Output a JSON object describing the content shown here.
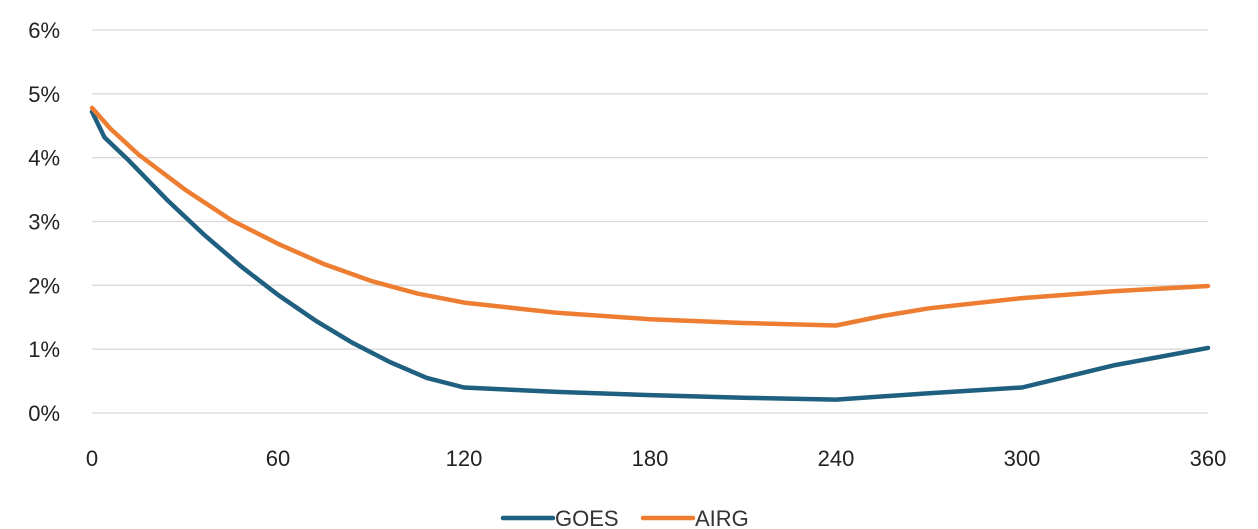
{
  "chart_data": {
    "type": "line",
    "title": "",
    "xlabel": "",
    "ylabel": "",
    "xlim": [
      0,
      360
    ],
    "ylim": [
      0,
      6
    ],
    "x_ticks": [
      "0",
      "60",
      "120",
      "180",
      "240",
      "300",
      "360"
    ],
    "y_ticks": [
      "0%",
      "1%",
      "2%",
      "3%",
      "4%",
      "5%",
      "6%"
    ],
    "grid": "horizontal",
    "legend_position": "bottom",
    "series": [
      {
        "name": "GOES",
        "color": "#1f5f80",
        "x": [
          0,
          4,
          12,
          24,
          36,
          48,
          60,
          72,
          84,
          96,
          108,
          120,
          150,
          180,
          210,
          240,
          270,
          300,
          330,
          360
        ],
        "y": [
          4.72,
          4.32,
          3.95,
          3.35,
          2.8,
          2.3,
          1.85,
          1.45,
          1.1,
          0.8,
          0.55,
          0.4,
          0.33,
          0.28,
          0.24,
          0.21,
          0.31,
          0.4,
          0.75,
          1.02
        ]
      },
      {
        "name": "AIRG",
        "color": "#ed7d31",
        "x": [
          0,
          6,
          15,
          30,
          45,
          60,
          75,
          90,
          105,
          120,
          150,
          180,
          210,
          240,
          255,
          270,
          300,
          330,
          360
        ],
        "y": [
          4.78,
          4.45,
          4.05,
          3.5,
          3.02,
          2.65,
          2.33,
          2.07,
          1.87,
          1.73,
          1.57,
          1.47,
          1.41,
          1.37,
          1.52,
          1.64,
          1.8,
          1.91,
          1.99
        ]
      }
    ]
  }
}
